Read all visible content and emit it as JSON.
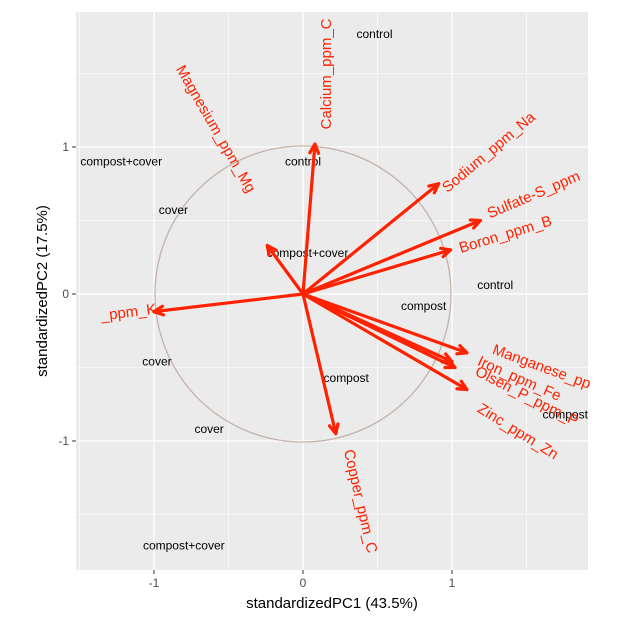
{
  "chart_data": {
    "type": "scatter",
    "title": "",
    "xlabel": "standardizedPC1 (43.5%)",
    "ylabel": "standardizedPC2 (17.5%)",
    "xlim": [
      -1.52,
      1.9
    ],
    "ylim": [
      -1.88,
      1.9
    ],
    "xticks": [
      -1,
      0,
      1
    ],
    "yticks": [
      -1,
      0,
      1
    ],
    "grid": true,
    "circle_radius": 1,
    "colors": {
      "panel": "#ebebeb",
      "grid": "#ffffff",
      "arrow": "#ff2200",
      "circle": "#c4b2aa",
      "points": "#000000"
    },
    "points": [
      {
        "label": "control",
        "x": 0.48,
        "y": 1.77
      },
      {
        "label": "compost+cover",
        "x": -1.22,
        "y": 0.9
      },
      {
        "label": "control",
        "x": 0.0,
        "y": 0.9
      },
      {
        "label": "cover",
        "x": -0.87,
        "y": 0.57
      },
      {
        "label": "compost+cover",
        "x": 0.03,
        "y": 0.28
      },
      {
        "label": "control",
        "x": 1.29,
        "y": 0.06
      },
      {
        "label": "compost",
        "x": 0.81,
        "y": -0.08
      },
      {
        "label": "cover",
        "x": -0.98,
        "y": -0.46
      },
      {
        "label": "compost",
        "x": 0.29,
        "y": -0.57
      },
      {
        "label": "compost",
        "x": 1.76,
        "y": -0.82
      },
      {
        "label": "cover",
        "x": -0.63,
        "y": -0.92
      },
      {
        "label": "compost+cover",
        "x": -0.8,
        "y": -1.71
      }
    ],
    "loadings": [
      {
        "name": "Calcium_ppm_Ca",
        "x": 0.08,
        "y": 1.02
      },
      {
        "name": "Magnesium_ppm_Mg",
        "x": -0.24,
        "y": 0.33
      },
      {
        "name": "Sodium_ppm_Na",
        "x": 0.91,
        "y": 0.75
      },
      {
        "name": "Sulfate-S_ppm",
        "x": 1.19,
        "y": 0.5
      },
      {
        "name": "Boron_ppm_B",
        "x": 0.99,
        "y": 0.3
      },
      {
        "name": "Potassium_ppm_K",
        "x": -1.0,
        "y": -0.12
      },
      {
        "name": "Manganese_ppm_Mn",
        "x": 1.1,
        "y": -0.4
      },
      {
        "name": "Iron_ppm_Fe",
        "x": 1.0,
        "y": -0.46
      },
      {
        "name": "Olsen_P_ppm_P",
        "x": 1.02,
        "y": -0.5
      },
      {
        "name": "Zinc_ppm_Zn",
        "x": 1.1,
        "y": -0.65
      },
      {
        "name": "Copper_ppm_Cu",
        "x": 0.22,
        "y": -0.95
      }
    ],
    "loading_labels": [
      {
        "text": "Calcium_ppm_C",
        "x": 0.16,
        "y": 1.12,
        "rot": -90,
        "anchor": "start"
      },
      {
        "text": "Magnesium_ppm_Mg",
        "x": -0.59,
        "y": 1.12,
        "rot": 60,
        "anchor": "middle"
      },
      {
        "text": "Sodium_ppm_Na",
        "x": 1.25,
        "y": 0.96,
        "rot": -40,
        "anchor": "middle"
      },
      {
        "text": "Sulfate-S_ppm",
        "x": 1.55,
        "y": 0.67,
        "rot": -23,
        "anchor": "middle"
      },
      {
        "text": "Boron_ppm_B",
        "x": 1.36,
        "y": 0.4,
        "rot": -17,
        "anchor": "middle"
      },
      {
        "text": "_ppm_K",
        "x": -1.17,
        "y": -0.13,
        "rot": -7,
        "anchor": "middle"
      },
      {
        "text": "Manganese_pp",
        "x": 1.6,
        "y": -0.5,
        "rot": 20,
        "anchor": "middle"
      },
      {
        "text": "Iron_ppm_Fe",
        "x": 1.45,
        "y": -0.58,
        "rot": 24,
        "anchor": "middle"
      },
      {
        "text": "Olsen_P_ppm_P",
        "x": 1.5,
        "y": -0.7,
        "rot": 27,
        "anchor": "middle"
      },
      {
        "text": "Zinc_ppm_Zn",
        "x": 1.44,
        "y": -0.94,
        "rot": 32,
        "anchor": "middle"
      },
      {
        "text": "Copper_ppm_C",
        "x": 0.3,
        "y": -1.06,
        "rot": 77,
        "anchor": "start"
      }
    ]
  }
}
